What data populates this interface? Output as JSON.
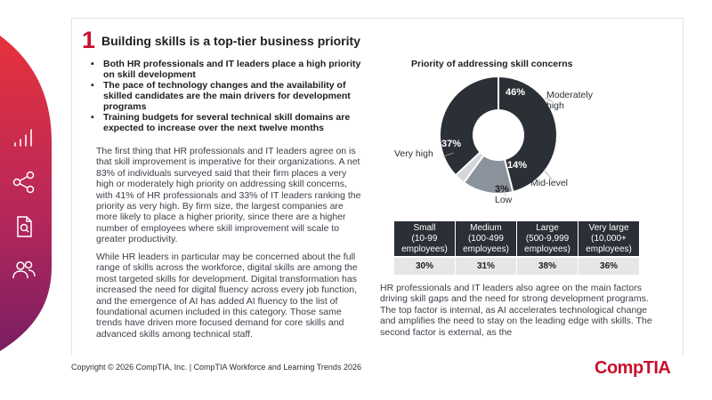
{
  "section": {
    "number": "1",
    "title": "Building skills is a top-tier business priority"
  },
  "bullets": [
    "Both HR professionals and IT leaders place a high priority on skill development",
    "The pace of technology changes and the availability of skilled candidates are the main drivers for development programs",
    "Training budgets for several technical skill domains are expected to increase over the next twelve months"
  ],
  "body": {
    "para1": "The first thing that HR professionals and IT leaders agree on is that skill improvement is imperative for their organizations. A net 83% of individuals surveyed said that their firm places a very high or moderately high priority on addressing skill concerns, with 41% of HR professionals and 33% of IT leaders ranking the priority as very high. By firm size, the largest companies are more likely to place a higher priority, since there are a higher number of employees where skill improvement will scale to greater productivity.",
    "para2": "While HR leaders in particular may be concerned about the full range of skills across the workforce, digital skills are among the most targeted skills for development. Digital transformation has increased the need for digital fluency across every job function, and the emergence of AI has added AI fluency to the list of foundational acumen included in this category. Those same trends have driven more focused demand for core skills and advanced skills among technical staff.",
    "para3": "HR professionals and IT leaders also agree on the main factors driving skill gaps and the need for strong development programs. The top factor is internal, as AI accelerates technological change and amplifies the need to stay on the leading edge with skills. The second factor is external, as the"
  },
  "chart_data": {
    "type": "pie",
    "title": "Priority of addressing skill concerns",
    "slices": [
      {
        "label": "Moderately high",
        "value": 46,
        "display": "46%",
        "color": "#2b2f36"
      },
      {
        "label": "Mid-level",
        "value": 14,
        "display": "14%",
        "color": "#8a929c"
      },
      {
        "label": "Low",
        "value": 3,
        "display": "3%",
        "color": "#d3d6da"
      },
      {
        "label": "Very high",
        "value": 37,
        "display": "37%",
        "color": "#2b2f36"
      }
    ]
  },
  "firm_size_table": {
    "headers": [
      [
        "Small",
        "(10-99",
        "employees)"
      ],
      [
        "Medium",
        "(100-499",
        "employees)"
      ],
      [
        "Large",
        "(500-9,999",
        "employees)"
      ],
      [
        "Very large",
        "(10,000+",
        "employees)"
      ]
    ],
    "values": [
      "30%",
      "31%",
      "38%",
      "36%"
    ]
  },
  "footer": {
    "copyright": "Copyright © 2026 CompTIA, Inc. | CompTIA Workforce and Learning Trends 2026",
    "logo": "CompTIA"
  },
  "colors": {
    "brand_red": "#c8102e",
    "sidebar_gradient_top": "#e6323c",
    "sidebar_gradient_bottom": "#7a1e63"
  },
  "sidebar_icons": [
    "bar-chart-icon",
    "share-icon",
    "document-search-icon",
    "people-icon"
  ]
}
